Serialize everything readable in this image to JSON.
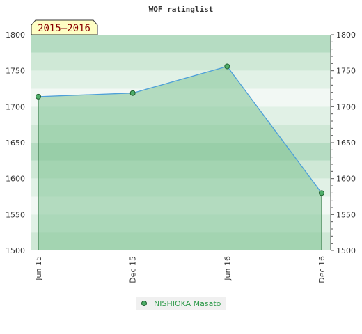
{
  "chart_data": {
    "type": "area",
    "title": "WOF ratinglist",
    "period_label": "2015–2016",
    "x": [
      "Jun 15",
      "Dec 15",
      "Jun 16",
      "Dec 16"
    ],
    "series": [
      {
        "name": "NISHIOKA Masato",
        "values": [
          1714,
          1719,
          1756,
          1580
        ]
      }
    ],
    "ylim": [
      1500,
      1800
    ],
    "yticks": [
      "1500",
      "1550",
      "1600",
      "1650",
      "1700",
      "1750",
      "1800"
    ],
    "grid": true,
    "legend_position": "bottom-center",
    "colors": {
      "line": "#4d9fd9",
      "fill": "#7fc394",
      "marker_fill": "#4fae69",
      "marker_stroke": "#1f5f2f",
      "badge_fill": "#fefec4",
      "badge_text": "#8b0000",
      "bands": [
        "#b5dcc2",
        "#cfe8d6",
        "#e1f1e6",
        "#f2f8f4"
      ]
    }
  }
}
